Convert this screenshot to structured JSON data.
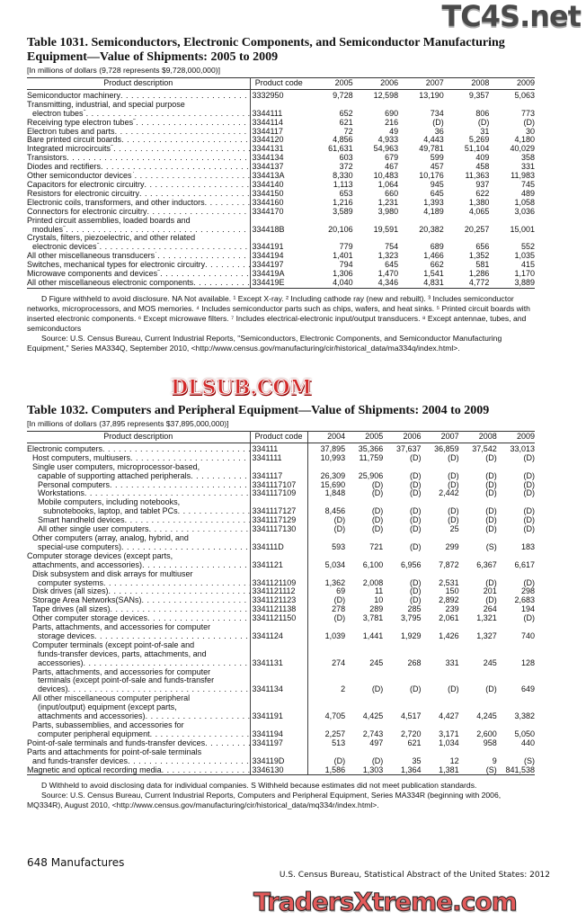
{
  "table1031": {
    "title": "Table 1031. Semiconductors, Electronic Components, and Semiconductor Manufacturing Equipment—Value of Shipments: 2005 to 2009",
    "caption": "[In millions of dollars (9,728 represents $9,728,000,000)]",
    "headers": {
      "desc": "Product description",
      "code": "Product code",
      "years": [
        "2005",
        "2006",
        "2007",
        "2008",
        "2009"
      ]
    },
    "rows": [
      {
        "desc": [
          "Semiconductor machinery"
        ],
        "indent": 0,
        "code": "3332950",
        "values": [
          "9,728",
          "12,598",
          "13,190",
          "9,357",
          "5,063"
        ]
      },
      {
        "desc": [
          "Transmitting, industrial, and special purpose",
          "electron tubes"
        ],
        "sup": "1",
        "indent": 0,
        "code": "3344111",
        "values": [
          "652",
          "690",
          "734",
          "806",
          "773"
        ]
      },
      {
        "desc": [
          "Receiving type electron tubes"
        ],
        "sup": "2",
        "indent": 0,
        "code": "3344114",
        "values": [
          "621",
          "216",
          "(D)",
          "(D)",
          "(D)"
        ]
      },
      {
        "desc": [
          "Electron tubes and parts"
        ],
        "indent": 0,
        "code": "3344117",
        "values": [
          "72",
          "49",
          "36",
          "31",
          "30"
        ]
      },
      {
        "desc": [
          "Bare printed circuit boards"
        ],
        "indent": 0,
        "code": "3344120",
        "values": [
          "4,856",
          "4,933",
          "4,443",
          "5,269",
          "4,180"
        ]
      },
      {
        "desc": [
          "Integrated microcircuits"
        ],
        "sup": "3",
        "indent": 0,
        "code": "3344131",
        "values": [
          "61,631",
          "54,963",
          "49,781",
          "51,104",
          "40,029"
        ]
      },
      {
        "desc": [
          "Transistors"
        ],
        "indent": 0,
        "code": "3344134",
        "values": [
          "603",
          "679",
          "599",
          "409",
          "358"
        ]
      },
      {
        "desc": [
          "Diodes and rectifiers"
        ],
        "indent": 0,
        "code": "3344137",
        "values": [
          "372",
          "467",
          "457",
          "458",
          "331"
        ]
      },
      {
        "desc": [
          "Other semiconductor devices"
        ],
        "sup": "4",
        "indent": 0,
        "code": "334413A",
        "values": [
          "8,330",
          "10,483",
          "10,176",
          "11,363",
          "11,983"
        ]
      },
      {
        "desc": [
          "Capacitors for electronic circuitry"
        ],
        "indent": 0,
        "code": "3344140",
        "values": [
          "1,113",
          "1,064",
          "945",
          "937",
          "745"
        ]
      },
      {
        "desc": [
          "Resistors for electronic circuitry"
        ],
        "indent": 0,
        "code": "3344150",
        "values": [
          "653",
          "660",
          "645",
          "622",
          "489"
        ]
      },
      {
        "desc": [
          "Electronic coils, transformers, and other inductors"
        ],
        "indent": 0,
        "code": "3344160",
        "values": [
          "1,216",
          "1,231",
          "1,393",
          "1,380",
          "1,058"
        ]
      },
      {
        "desc": [
          "Connectors for electronic circuitry"
        ],
        "indent": 0,
        "code": "3344170",
        "values": [
          "3,589",
          "3,980",
          "4,189",
          "4,065",
          "3,036"
        ]
      },
      {
        "desc": [
          "Printed circuit assemblies, loaded boards and",
          "modules"
        ],
        "sup": "5",
        "indent": 0,
        "code": "334418B",
        "values": [
          "20,106",
          "19,591",
          "20,382",
          "20,257",
          "15,001"
        ]
      },
      {
        "desc": [
          "Crystals, filters, piezoelectric, and other related",
          "electronic devices"
        ],
        "sup": "6",
        "indent": 0,
        "code": "3344191",
        "values": [
          "779",
          "754",
          "689",
          "656",
          "552"
        ]
      },
      {
        "desc": [
          "All other miscellaneous transducers"
        ],
        "sup": "7",
        "indent": 0,
        "code": "3344194",
        "values": [
          "1,401",
          "1,323",
          "1,466",
          "1,352",
          "1,035"
        ]
      },
      {
        "desc": [
          "Switches, mechanical types for electronic circuitry"
        ],
        "indent": 0,
        "code": "3344197",
        "values": [
          "794",
          "645",
          "662",
          "581",
          "415"
        ]
      },
      {
        "desc": [
          "Microwave components and devices"
        ],
        "sup": "8",
        "indent": 0,
        "code": "334419A",
        "values": [
          "1,306",
          "1,470",
          "1,541",
          "1,286",
          "1,170"
        ]
      },
      {
        "desc": [
          "All other miscellaneous electronic components"
        ],
        "indent": 0,
        "code": "334419E",
        "values": [
          "4,040",
          "4,346",
          "4,831",
          "4,772",
          "3,889"
        ]
      }
    ],
    "notes": "D Figure withheld to avoid disclosure. NA Not available. ¹ Except X-ray. ² Including cathode ray (new and rebuilt). ³ Includes semiconductor networks, microprocessors, and MOS memories. ⁴ Includes semiconductor parts such as chips, wafers, and heat sinks. ⁵ Printed circuit boards with inserted electronic components. ⁶ Except microwave filters. ⁷ Includes electrical-electronic input/output transducers. ⁸ Except antennae, tubes, and semiconductors",
    "source": "Source: U.S. Census Bureau, Current Industrial Reports, \"Semiconductors, Electronic Components, and Semiconductor Manufacturing Equipment,\" Series MA334Q, September 2010, <http://www.census.gov/manufacturing/cir/historical_data/ma334q/index.html>."
  },
  "table1032": {
    "title": "Table 1032. Computers and Peripheral Equipment—Value of Shipments: 2004 to 2009",
    "caption": "[In millions of dollars (37,895 represents $37,895,000,000)]",
    "headers": {
      "desc": "Product description",
      "code": "Product code",
      "years": [
        "2004",
        "2005",
        "2006",
        "2007",
        "2008",
        "2009"
      ]
    },
    "rows": [
      {
        "desc": [
          "Electronic computers"
        ],
        "indent": 0,
        "code": "334111",
        "values": [
          "37,895",
          "35,366",
          "37,637",
          "36,859",
          "37,542",
          "33,013"
        ]
      },
      {
        "desc": [
          "Host computers, multiusers"
        ],
        "indent": 1,
        "code": "3341111",
        "values": [
          "10,993",
          "11,759",
          "(D)",
          "(D)",
          "(D)",
          "(D)"
        ]
      },
      {
        "desc": [
          "Single user computers, microprocessor-based,",
          "capable of supporting attached peripherals"
        ],
        "indent": 1,
        "code": "3341117",
        "values": [
          "26,309",
          "25,906",
          "(D)",
          "(D)",
          "(D)",
          "(D)"
        ]
      },
      {
        "desc": [
          "Personal computers"
        ],
        "indent": 2,
        "code": "3341117107",
        "values": [
          "15,690",
          "(D)",
          "(D)",
          "(D)",
          "(D)",
          "(D)"
        ]
      },
      {
        "desc": [
          "Workstations"
        ],
        "indent": 2,
        "code": "3341117109",
        "values": [
          "1,848",
          "(D)",
          "(D)",
          "2,442",
          "(D)",
          "(D)"
        ]
      },
      {
        "desc": [
          "Mobile computers, including notebooks,",
          "subnotebooks, laptop, and tablet PCs"
        ],
        "indent": 2,
        "code": "3341117127",
        "values": [
          "8,456",
          "(D)",
          "(D)",
          "(D)",
          "(D)",
          "(D)"
        ]
      },
      {
        "desc": [
          "Smart handheld devices"
        ],
        "indent": 2,
        "code": "3341117129",
        "values": [
          "(D)",
          "(D)",
          "(D)",
          "(D)",
          "(D)",
          "(D)"
        ]
      },
      {
        "desc": [
          "All other single user computers"
        ],
        "indent": 2,
        "code": "3341117130",
        "values": [
          "(D)",
          "(D)",
          "(D)",
          "25",
          "(D)",
          "(D)"
        ]
      },
      {
        "desc": [
          "Other computers (array, analog, hybrid, and",
          "special-use computers)"
        ],
        "indent": 1,
        "code": "334111D",
        "values": [
          "593",
          "721",
          "(D)",
          "299",
          "(S)",
          "183"
        ]
      },
      {
        "desc": [
          "Computer storage devices (except parts,",
          "attachments, and accessories)"
        ],
        "indent": 0,
        "code": "3341121",
        "values": [
          "5,034",
          "6,100",
          "6,956",
          "7,872",
          "6,367",
          "6,617"
        ]
      },
      {
        "desc": [
          "Disk subsystem and disk arrays for multiuser",
          "computer systems"
        ],
        "indent": 1,
        "code": "3341121109",
        "values": [
          "1,362",
          "2,008",
          "(D)",
          "2,531",
          "(D)",
          "(D)"
        ]
      },
      {
        "desc": [
          "Disk drives (all sizes)"
        ],
        "indent": 1,
        "code": "3341121112",
        "values": [
          "69",
          "11",
          "(D)",
          "150",
          "201",
          "298"
        ]
      },
      {
        "desc": [
          "Storage Area Networks(SANs)"
        ],
        "indent": 1,
        "code": "3341121123",
        "values": [
          "(D)",
          "10",
          "(D)",
          "2,892",
          "(D)",
          "2,683"
        ]
      },
      {
        "desc": [
          "Tape drives (all sizes)"
        ],
        "indent": 1,
        "code": "3341121138",
        "values": [
          "278",
          "289",
          "285",
          "239",
          "264",
          "194"
        ]
      },
      {
        "desc": [
          "Other computer storage devices"
        ],
        "indent": 1,
        "code": "3341121150",
        "values": [
          "(D)",
          "3,781",
          "3,795",
          "2,061",
          "1,321",
          "(D)"
        ]
      },
      {
        "desc": [
          "Parts, attachments, and accessories for computer",
          "storage devices"
        ],
        "indent": 1,
        "code": "3341124",
        "values": [
          "1,039",
          "1,441",
          "1,929",
          "1,426",
          "1,327",
          "740"
        ]
      },
      {
        "desc": [
          "Computer terminals (except point-of-sale and",
          "funds-transfer devices, parts, attachments, and",
          "accessories)"
        ],
        "indent": 1,
        "code": "3341131",
        "values": [
          "274",
          "245",
          "268",
          "331",
          "245",
          "128"
        ]
      },
      {
        "desc": [
          "Parts, attachments, and accessories for computer",
          "terminals (except point-of-sale and funds-transfer",
          "devices)"
        ],
        "indent": 1,
        "code": "3341134",
        "values": [
          "2",
          "(D)",
          "(D)",
          "(D)",
          "(D)",
          "649"
        ]
      },
      {
        "desc": [
          "All other miscellaneous computer peripheral",
          "(input/output) equipment (except parts,",
          "attachments and accessories)"
        ],
        "indent": 1,
        "code": "3341191",
        "values": [
          "4,705",
          "4,425",
          "4,517",
          "4,427",
          "4,245",
          "3,382"
        ]
      },
      {
        "desc": [
          "Parts, subassemblies, and accessories for",
          "computer peripheral equipment"
        ],
        "indent": 1,
        "code": "3341194",
        "values": [
          "2,257",
          "2,743",
          "2,720",
          "3,171",
          "2,600",
          "5,050"
        ]
      },
      {
        "desc": [
          "Point-of-sale terminals and funds-transfer devices"
        ],
        "indent": 0,
        "code": "3341197",
        "values": [
          "513",
          "497",
          "621",
          "1,034",
          "958",
          "440"
        ]
      },
      {
        "desc": [
          "Parts and attachments for point-of-sale terminals",
          "and funds-transfer devices"
        ],
        "indent": 0,
        "code": "334119D",
        "values": [
          "(D)",
          "(D)",
          "35",
          "12",
          "9",
          "(S)"
        ]
      },
      {
        "desc": [
          "Magnetic and optical recording media"
        ],
        "indent": 0,
        "code": "3346130",
        "values": [
          "1,586",
          "1,303",
          "1,364",
          "1,381",
          "(S)",
          "841,538"
        ]
      }
    ],
    "notes": "D Withheld to avoid disclosing data for individual companies. S Withheld because estimates did not meet publication standards.",
    "source": "Source: U.S. Census Bureau, Current Industrial Reports, Computers and Peripheral Equipment, Series MA334R (beginning with 2006, MQ334R), August 2010, <http://www.census.gov/manufacturing/cir/historical_data/mq334r/index.html>."
  },
  "footer": {
    "page": "648  Manufactures",
    "publication": "U.S. Census Bureau, Statistical Abstract of the United States: 2012"
  },
  "watermarks": {
    "top": "TC4S.net",
    "middle": "DLSUB.COM",
    "bottom": "TradersXtreme.com",
    "colors": {
      "top": "#4a4a4a",
      "middle": "#d32a2a",
      "bottom": "#e35a5a"
    }
  }
}
